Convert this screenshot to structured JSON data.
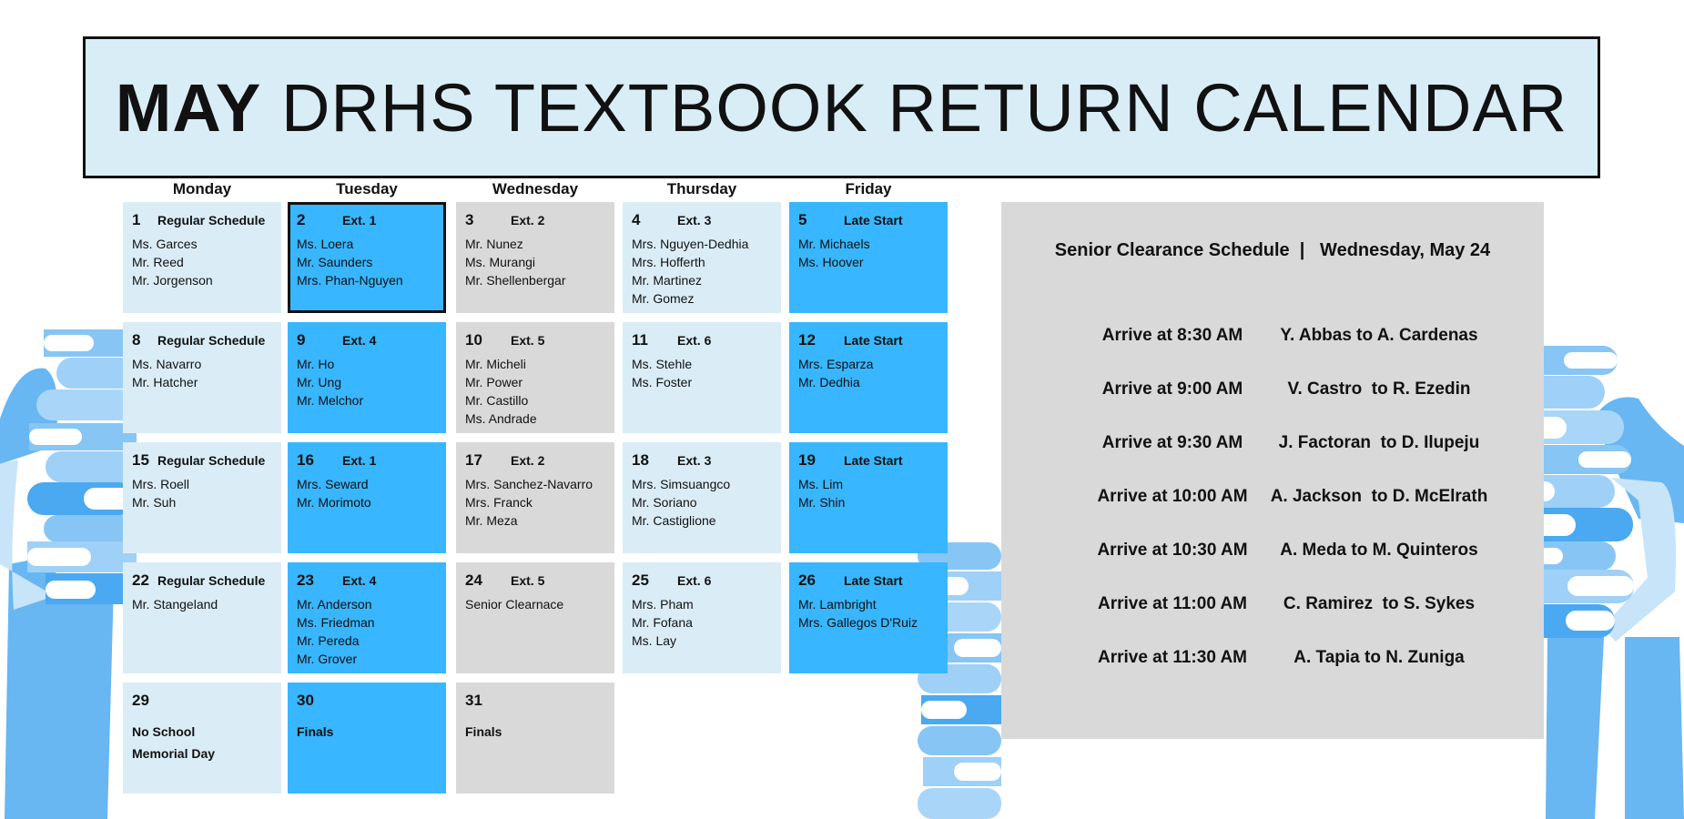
{
  "title": {
    "month": "MAY",
    "rest": "DRHS TEXTBOOK RETURN CALENDAR"
  },
  "days": [
    "Monday",
    "Tuesday",
    "Wednesday",
    "Thursday",
    "Friday"
  ],
  "colors": {
    "light": "#daedf7",
    "blue": "#38b6ff",
    "gray": "#d9d9d9",
    "title_bg": "#d9edf7"
  },
  "weeks": [
    [
      {
        "num": "1",
        "label": "Regular Schedule",
        "names": [
          "Ms. Garces",
          "Mr. Reed",
          "Mr. Jorgenson"
        ]
      },
      {
        "num": "2",
        "label": "Ext. 1",
        "names": [
          "Ms. Loera",
          "Mr. Saunders",
          "Mrs. Phan-Nguyen"
        ],
        "highlighted": true
      },
      {
        "num": "3",
        "label": "Ext. 2",
        "names": [
          "Mr. Nunez",
          "Ms. Murangi",
          "Mr. Shellenbergar"
        ]
      },
      {
        "num": "4",
        "label": "Ext. 3",
        "names": [
          "Mrs. Nguyen-Dedhia",
          "Mrs. Hofferth",
          "Mr. Martinez",
          "Mr. Gomez"
        ]
      },
      {
        "num": "5",
        "label": "Late Start",
        "names": [
          "Mr. Michaels",
          "Ms. Hoover"
        ]
      }
    ],
    [
      {
        "num": "8",
        "label": "Regular Schedule",
        "names": [
          "Ms. Navarro",
          "Mr. Hatcher"
        ]
      },
      {
        "num": "9",
        "label": "Ext. 4",
        "names": [
          "Mr. Ho",
          "Mr. Ung",
          "Mr. Melchor"
        ]
      },
      {
        "num": "10",
        "label": "Ext. 5",
        "names": [
          "Mr. Micheli",
          "Mr. Power",
          "Mr. Castillo",
          "Ms. Andrade"
        ]
      },
      {
        "num": "11",
        "label": "Ext. 6",
        "names": [
          "Ms. Stehle",
          "Ms. Foster"
        ]
      },
      {
        "num": "12",
        "label": "Late Start",
        "names": [
          "Mrs. Esparza",
          "Mr. Dedhia"
        ]
      }
    ],
    [
      {
        "num": "15",
        "label": "Regular Schedule",
        "names": [
          "Mrs. Roell",
          "Mr. Suh"
        ]
      },
      {
        "num": "16",
        "label": "Ext. 1",
        "names": [
          "Mrs. Seward",
          "Mr. Morimoto"
        ]
      },
      {
        "num": "17",
        "label": "Ext. 2",
        "names": [
          "Mrs. Sanchez-Navarro",
          "Mrs. Franck",
          "Mr. Meza"
        ]
      },
      {
        "num": "18",
        "label": "Ext. 3",
        "names": [
          "Mrs. Simsuangco",
          "Mr. Soriano",
          "Mr. Castiglione"
        ]
      },
      {
        "num": "19",
        "label": "Late Start",
        "names": [
          "Ms. Lim",
          "Mr. Shin"
        ]
      }
    ],
    [
      {
        "num": "22",
        "label": "Regular Schedule",
        "names": [
          "Mr. Stangeland"
        ]
      },
      {
        "num": "23",
        "label": "Ext. 4",
        "names": [
          "Mr. Anderson",
          "Ms. Friedman",
          "Mr. Pereda",
          "Mr. Grover"
        ]
      },
      {
        "num": "24",
        "label": "Ext. 5",
        "names": [
          "Senior Clearnace"
        ]
      },
      {
        "num": "25",
        "label": "Ext. 6",
        "names": [
          "Mrs. Pham",
          "Mr. Fofana",
          "Ms. Lay"
        ]
      },
      {
        "num": "26",
        "label": "Late Start",
        "names": [
          "Mr. Lambright",
          "Mrs. Gallegos D'Ruiz"
        ]
      }
    ],
    [
      {
        "num": "29",
        "note": [
          "No School",
          "Memorial Day"
        ]
      },
      {
        "num": "30",
        "note": [
          "Finals"
        ]
      },
      {
        "num": "31",
        "note": [
          "Finals"
        ]
      }
    ]
  ],
  "senior": {
    "title": "Senior Clearance Schedule  |   Wednesday, May 24",
    "rows": [
      {
        "time": "Arrive at 8:30 AM",
        "range": "Y. Abbas to A. Cardenas"
      },
      {
        "time": "Arrive at 9:00 AM",
        "range": "V. Castro  to R. Ezedin"
      },
      {
        "time": "Arrive at 9:30 AM",
        "range": "J. Factoran  to D. Ilupeju"
      },
      {
        "time": "Arrive at 10:00 AM",
        "range": "A. Jackson  to D. McElrath"
      },
      {
        "time": "Arrive at 10:30 AM",
        "range": "A. Meda to M. Quinteros"
      },
      {
        "time": "Arrive at 11:00 AM",
        "range": "C. Ramirez  to S. Sykes"
      },
      {
        "time": "Arrive at 11:30 AM",
        "range": "A. Tapia to N. Zuniga"
      }
    ]
  }
}
